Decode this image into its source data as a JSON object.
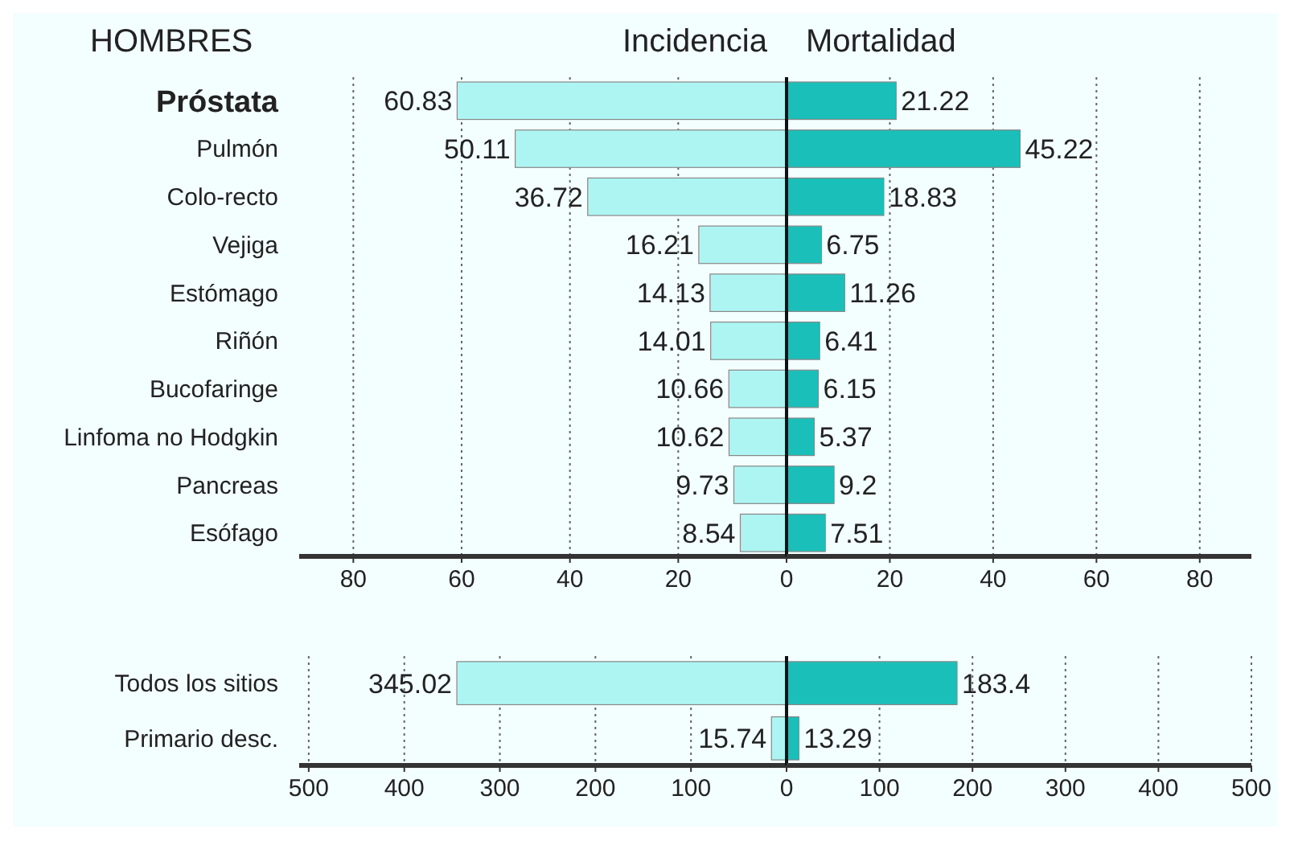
{
  "chart_data": [
    {
      "type": "bar",
      "title": "HOMBRES",
      "orientation": "horizontal",
      "categories": [
        "Próstata",
        "Pulmón",
        "Colo-recto",
        "Vejiga",
        "Estómago",
        "Riñón",
        "Bucofaringe",
        "Linfoma no Hodgkin",
        "Pancreas",
        "Esófago"
      ],
      "series": [
        {
          "name": "Incidencia",
          "color": "#adf5f3",
          "values": [
            60.83,
            50.11,
            36.72,
            16.21,
            14.13,
            14.01,
            10.66,
            10.62,
            9.73,
            8.54
          ]
        }
      ],
      "data_labels": true,
      "xlim": [
        90,
        0
      ],
      "xticks": [
        80,
        60,
        40,
        20,
        0
      ],
      "grid": "x",
      "legend": "top"
    },
    {
      "type": "bar",
      "orientation": "horizontal",
      "categories": [
        null,
        null,
        null,
        null,
        null,
        null,
        null,
        null,
        null,
        null
      ],
      "series": [
        {
          "name": "Mortalidad",
          "color": "#1bbfb9",
          "values": [
            21.22,
            45.22,
            18.83,
            6.75,
            11.26,
            6.41,
            6.15,
            5.37,
            9.2,
            7.51
          ]
        }
      ],
      "data_labels": true,
      "xlim": [
        0,
        90
      ],
      "xticks": [
        20,
        40,
        60,
        80
      ],
      "grid": "x",
      "legend": "top",
      "tick_labels": "x"
    },
    {
      "type": "bar",
      "orientation": "horizontal",
      "categories": [
        "Todos los sitios",
        "Primario desc."
      ],
      "series": [
        {
          "color": "#adf5f3",
          "values": [
            345.02,
            15.74
          ]
        }
      ],
      "data_labels": true,
      "xlim": [
        510,
        0
      ],
      "xticks": [
        500,
        400,
        300,
        200,
        100,
        0
      ],
      "grid": "x"
    },
    {
      "type": "bar",
      "orientation": "horizontal",
      "categories": [
        null,
        null
      ],
      "series": [
        {
          "color": "#1bbfb9",
          "values": [
            183.4,
            13.29
          ]
        }
      ],
      "data_labels": true,
      "xlim": [
        0,
        500
      ],
      "xticks": [
        100,
        200,
        300,
        400,
        500
      ],
      "grid": "x",
      "tick_labels": "x"
    }
  ]
}
